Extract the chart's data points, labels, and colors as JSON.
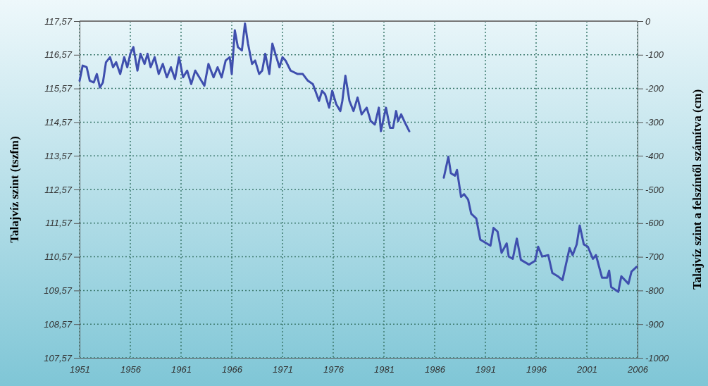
{
  "chart_data": {
    "type": "line",
    "ylabel": "Talajvíz szint (tszfm)",
    "y2label": "Talajvíz szint a felszíntől számítva (cm)",
    "xlim": [
      1951,
      2006
    ],
    "xticks": [
      1951,
      1956,
      1961,
      1966,
      1971,
      1976,
      1981,
      1986,
      1991,
      1996,
      2001,
      2006
    ],
    "ylim": [
      107.57,
      117.57
    ],
    "yticks": [
      {
        "value": 107.57,
        "label": "107,57"
      },
      {
        "value": 108.57,
        "label": "108,57"
      },
      {
        "value": 109.57,
        "label": "109,57"
      },
      {
        "value": 110.57,
        "label": "110,57"
      },
      {
        "value": 111.57,
        "label": "111,57"
      },
      {
        "value": 112.57,
        "label": "112,57"
      },
      {
        "value": 113.57,
        "label": "113,57"
      },
      {
        "value": 114.57,
        "label": "114,57"
      },
      {
        "value": 115.57,
        "label": "115,57"
      },
      {
        "value": 116.57,
        "label": "116,57"
      },
      {
        "value": 117.57,
        "label": "117,57"
      }
    ],
    "y2lim": [
      -1000,
      0
    ],
    "y2ticks": [
      -1000,
      -900,
      -800,
      -700,
      -600,
      -500,
      -400,
      -300,
      -200,
      -100,
      0
    ],
    "grid": true,
    "line_style": "solid",
    "marker": "none",
    "series": [
      {
        "color": "#3f4fae",
        "x": [
          1951.0,
          1951.3,
          1951.7,
          1952.0,
          1952.4,
          1952.7,
          1953.0,
          1953.3,
          1953.6,
          1954.0,
          1954.3,
          1954.6,
          1955.0,
          1955.4,
          1955.7,
          1956.0,
          1956.3,
          1956.7,
          1957.0,
          1957.4,
          1957.7,
          1958.0,
          1958.4,
          1958.8,
          1959.2,
          1959.6,
          1960.0,
          1960.4,
          1960.8,
          1961.2,
          1961.6,
          1962.0,
          1962.4,
          1962.8,
          1963.3,
          1963.7,
          1964.2,
          1964.6,
          1965.0,
          1965.4,
          1965.8,
          1966.0,
          1966.3,
          1966.6,
          1967.0,
          1967.3,
          1967.6,
          1968.0,
          1968.3,
          1968.7,
          1969.0,
          1969.3,
          1969.7,
          1970.0,
          1970.4,
          1970.7,
          1971.0,
          1971.3,
          1971.8,
          1972.5,
          1973.0,
          1973.5,
          1974.0,
          1974.6,
          1974.9,
          1975.2,
          1975.6,
          1975.9,
          1976.3,
          1976.7,
          1976.9,
          1977.2,
          1977.6,
          1978.0,
          1978.4,
          1978.8,
          1979.3,
          1979.7,
          1980.1,
          1980.5,
          1980.7,
          1981.2,
          1981.6,
          1981.9,
          1982.2,
          1982.4,
          1982.7,
          1983.0,
          1983.5,
          1985.0,
          1986.9,
          1987.35,
          1987.6,
          1988.0,
          1988.2,
          1988.6,
          1988.9,
          1989.3,
          1989.6,
          1990.1,
          1990.5,
          1991.5,
          1991.8,
          1992.2,
          1992.6,
          1993.1,
          1993.3,
          1993.7,
          1994.1,
          1994.5,
          1995.3,
          1995.9,
          1996.2,
          1996.6,
          1997.2,
          1997.6,
          1998.2,
          1998.6,
          1999.3,
          1999.6,
          2000.0,
          2000.3,
          2000.7,
          2001.1,
          2001.6,
          2001.9,
          2002.5,
          2003.0,
          2003.2,
          2003.4,
          2004.1,
          2004.4,
          2005.1,
          2005.4,
          2005.9
        ],
        "values": [
          115.8,
          116.25,
          116.2,
          115.8,
          115.75,
          116.0,
          115.6,
          115.75,
          116.35,
          116.5,
          116.2,
          116.35,
          116.0,
          116.5,
          116.2,
          116.6,
          116.8,
          116.1,
          116.6,
          116.3,
          116.6,
          116.2,
          116.5,
          116.0,
          116.3,
          115.9,
          116.2,
          115.85,
          116.5,
          115.9,
          116.1,
          115.7,
          116.1,
          115.9,
          115.65,
          116.3,
          115.9,
          116.2,
          115.9,
          116.4,
          116.5,
          116.0,
          117.3,
          116.8,
          116.7,
          117.5,
          116.9,
          116.3,
          116.4,
          116.0,
          116.1,
          116.6,
          116.0,
          116.9,
          116.5,
          116.2,
          116.5,
          116.4,
          116.1,
          116.0,
          116.0,
          115.8,
          115.7,
          115.2,
          115.5,
          115.4,
          115.0,
          115.5,
          115.1,
          114.9,
          115.2,
          115.95,
          115.2,
          114.9,
          115.3,
          114.8,
          115.0,
          114.6,
          114.5,
          115.0,
          114.3,
          115.0,
          114.4,
          114.4,
          114.9,
          114.6,
          114.8,
          114.6,
          114.3,
          null,
          112.92,
          113.54,
          113.05,
          112.98,
          113.15,
          112.35,
          112.43,
          112.27,
          111.85,
          111.71,
          111.08,
          110.9,
          111.43,
          111.32,
          110.69,
          110.97,
          110.58,
          110.51,
          111.11,
          110.48,
          110.34,
          110.45,
          110.87,
          110.58,
          110.62,
          110.09,
          109.98,
          109.88,
          110.83,
          110.62,
          110.94,
          111.5,
          110.94,
          110.87,
          110.51,
          110.62,
          109.95,
          109.95,
          110.16,
          109.67,
          109.53,
          109.99,
          109.77,
          110.13,
          110.27
        ]
      }
    ]
  }
}
